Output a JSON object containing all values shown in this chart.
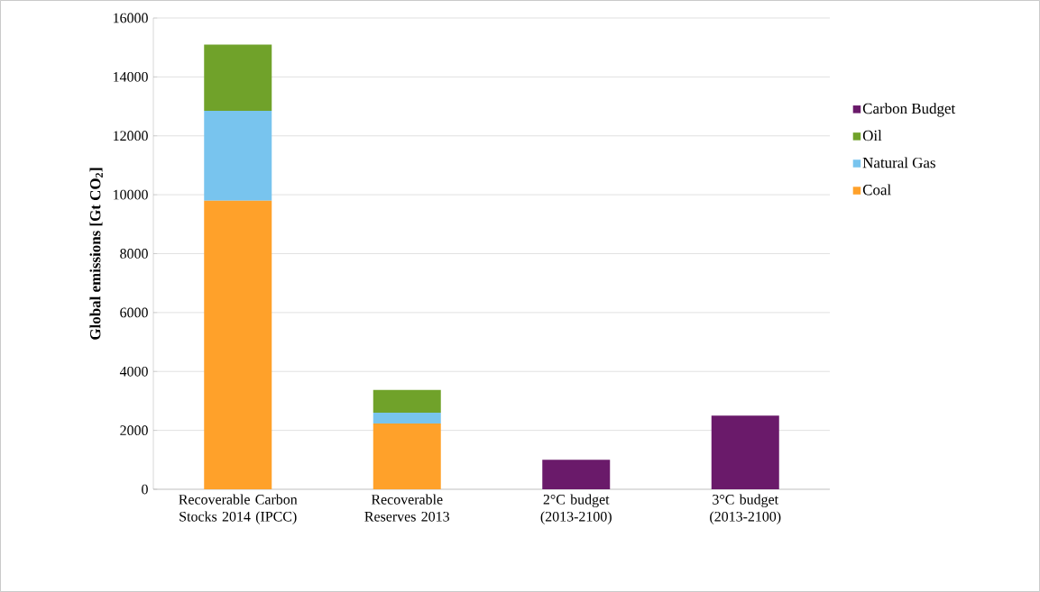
{
  "chart_data": {
    "type": "bar",
    "stacked": true,
    "ylabel": "Global emissions [Gt CO$_{2}$]",
    "categories": [
      "Recoverable Carbon Stocks 2014 (IPCC)",
      "Recoverable Reserves 2013",
      "2°C budget (2013-2100)",
      "3°C budget (2013-2100)"
    ],
    "series": [
      {
        "name": "Coal",
        "color": "#ffa12a",
        "values": [
          9800,
          2230,
          null,
          null
        ]
      },
      {
        "name": "Natural Gas",
        "color": "#78c4ee",
        "values": [
          3050,
          370,
          null,
          null
        ]
      },
      {
        "name": "Oil",
        "color": "#70a22a",
        "values": [
          2250,
          770,
          null,
          null
        ]
      },
      {
        "name": "Carbon Budget",
        "color": "#6a1a6a",
        "values": [
          null,
          null,
          1000,
          2500
        ]
      }
    ],
    "ylim": [
      0,
      16000
    ],
    "yticks": [
      0,
      2000,
      4000,
      6000,
      8000,
      10000,
      12000,
      14000,
      16000
    ],
    "grid": "y",
    "legend": "right"
  }
}
